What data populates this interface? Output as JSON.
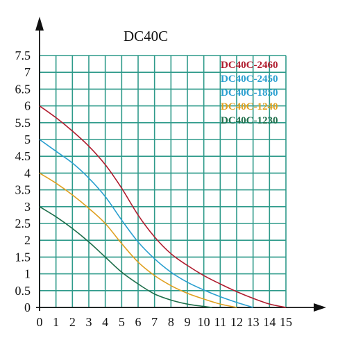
{
  "chart_data": {
    "type": "line",
    "title": "DC40C",
    "xlabel": "",
    "ylabel": "",
    "xlim": [
      0,
      15
    ],
    "ylim": [
      0,
      7.5
    ],
    "grid": true,
    "legend_position": "top-right",
    "x_ticks": [
      "0",
      "1",
      "2",
      "3",
      "4",
      "5",
      "6",
      "7",
      "8",
      "9",
      "10",
      "11",
      "12",
      "13",
      "14",
      "15"
    ],
    "y_ticks": [
      "0",
      "0.5",
      "1",
      "1.5",
      "2",
      "2.5",
      "3",
      "3.5",
      "4",
      "4.5",
      "5",
      "5.5",
      "6",
      "6.5",
      "7",
      "7.5"
    ],
    "grid_color": "#2e9a8a",
    "series": [
      {
        "name": "DC40C-2460",
        "color": "#b01c2e",
        "points": [
          [
            0,
            6
          ],
          [
            1,
            5.65
          ],
          [
            2,
            5.25
          ],
          [
            3,
            4.8
          ],
          [
            4,
            4.25
          ],
          [
            5,
            3.55
          ],
          [
            6,
            2.75
          ],
          [
            7,
            2.1
          ],
          [
            8,
            1.6
          ],
          [
            9,
            1.25
          ],
          [
            10,
            0.95
          ],
          [
            11,
            0.7
          ],
          [
            12,
            0.47
          ],
          [
            13,
            0.27
          ],
          [
            14,
            0.1
          ],
          [
            15,
            0
          ]
        ]
      },
      {
        "name": "DC40C-2450",
        "color": "#2a9fd0",
        "points": [
          [
            0,
            5
          ],
          [
            1,
            4.65
          ],
          [
            2,
            4.3
          ],
          [
            3,
            3.85
          ],
          [
            4,
            3.3
          ],
          [
            5,
            2.6
          ],
          [
            6,
            1.95
          ],
          [
            7,
            1.45
          ],
          [
            8,
            1.05
          ],
          [
            9,
            0.75
          ],
          [
            10,
            0.52
          ],
          [
            11,
            0.32
          ],
          [
            12,
            0.15
          ],
          [
            13,
            0
          ]
        ]
      },
      {
        "name": "DC40C-1850",
        "color": "#2a9fd0",
        "points": []
      },
      {
        "name": "DC40C-1240",
        "color": "#e0a020",
        "points": [
          [
            0,
            4
          ],
          [
            1,
            3.7
          ],
          [
            2,
            3.35
          ],
          [
            3,
            2.95
          ],
          [
            4,
            2.5
          ],
          [
            5,
            1.9
          ],
          [
            6,
            1.35
          ],
          [
            7,
            0.95
          ],
          [
            8,
            0.65
          ],
          [
            9,
            0.42
          ],
          [
            10,
            0.25
          ],
          [
            11,
            0.1
          ],
          [
            12,
            0
          ]
        ]
      },
      {
        "name": "DC40C-1230",
        "color": "#1e6e4a",
        "points": [
          [
            0,
            3
          ],
          [
            1,
            2.7
          ],
          [
            2,
            2.35
          ],
          [
            3,
            1.95
          ],
          [
            4,
            1.5
          ],
          [
            5,
            1.05
          ],
          [
            6,
            0.7
          ],
          [
            7,
            0.4
          ],
          [
            8,
            0.22
          ],
          [
            9,
            0.1
          ],
          [
            10,
            0.03
          ],
          [
            10.5,
            0
          ]
        ]
      }
    ]
  }
}
